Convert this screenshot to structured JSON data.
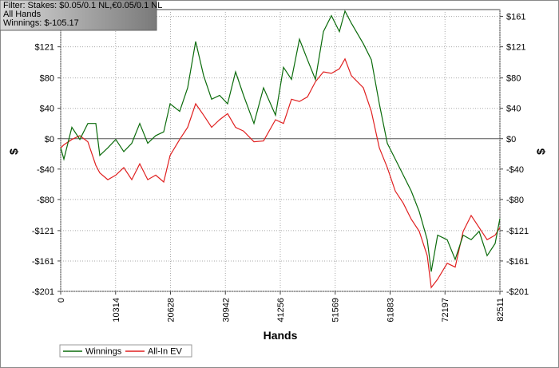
{
  "chart_data": {
    "type": "line",
    "annotations": [
      "Filter: Stakes: $0.05/0.1 NL,€0.05/0.1 NL",
      "All Hands",
      "Winnings: $-105.17"
    ],
    "xlabel": "Hands",
    "ylabel": "$",
    "x": [
      0,
      600,
      2100,
      3600,
      5101,
      6601,
      7351,
      8851,
      10351,
      11852,
      13352,
      14852,
      16352,
      17852,
      19352,
      20553,
      22353,
      23853,
      25353,
      26854,
      28354,
      29854,
      31354,
      32855,
      34355,
      36305,
      38105,
      40355,
      41856,
      43356,
      44856,
      46356,
      47856,
      49357,
      50857,
      52357,
      53407,
      54607,
      56857,
      58358,
      59858,
      61358,
      62858,
      64358,
      65859,
      67359,
      68859,
      69609,
      70809,
      72610,
      74110,
      75610,
      77110,
      78611,
      80111,
      81611,
      82511
    ],
    "series": [
      {
        "name": "Winnings",
        "color": "#0b6b0b",
        "values": [
          -12,
          -27,
          15,
          -1,
          20,
          20,
          -22,
          -12,
          -1,
          -17,
          -6,
          20,
          -6,
          4,
          9,
          46,
          36,
          67,
          128,
          83,
          52,
          57,
          46,
          88,
          57,
          20,
          67,
          31,
          94,
          78,
          131,
          104,
          78,
          141,
          162,
          141,
          168,
          152,
          125,
          104,
          46,
          -6,
          -27,
          -48,
          -69,
          -96,
          -133,
          -175,
          -127,
          -133,
          -159,
          -127,
          -133,
          -122,
          -154,
          -138,
          -105
        ]
      },
      {
        "name": "All-In EV",
        "color": "#e02020",
        "values": [
          -12,
          -8,
          -1,
          4,
          -4,
          -35,
          -45,
          -54,
          -48,
          -38,
          -54,
          -33,
          -54,
          -48,
          -57,
          -22,
          -1,
          15,
          46,
          31,
          15,
          25,
          33,
          15,
          10,
          -4,
          -3,
          25,
          20,
          52,
          49,
          55,
          75,
          88,
          86,
          92,
          105,
          83,
          67,
          36,
          -12,
          -38,
          -69,
          -85,
          -106,
          -122,
          -154,
          -196,
          -185,
          -164,
          -169,
          -122,
          -101,
          -117,
          -133,
          -127,
          -117
        ]
      }
    ],
    "xlim": [
      0,
      82511
    ],
    "xticks": [
      0,
      10314,
      20628,
      30942,
      41256,
      51569,
      61883,
      72197,
      82511
    ],
    "ylim": [
      -201,
      170
    ],
    "yticks": [
      {
        "value": -201,
        "label": "-$201"
      },
      {
        "value": -161,
        "label": "-$161"
      },
      {
        "value": -121,
        "label": "-$121"
      },
      {
        "value": -80,
        "label": "-$80"
      },
      {
        "value": -40,
        "label": "-$40"
      },
      {
        "value": 0,
        "label": "$0"
      },
      {
        "value": 40,
        "label": "$40"
      },
      {
        "value": 80,
        "label": "$80"
      },
      {
        "value": 121,
        "label": "$121"
      },
      {
        "value": 161,
        "label": "$161"
      }
    ],
    "grid": true,
    "legend": "bottom-left"
  }
}
